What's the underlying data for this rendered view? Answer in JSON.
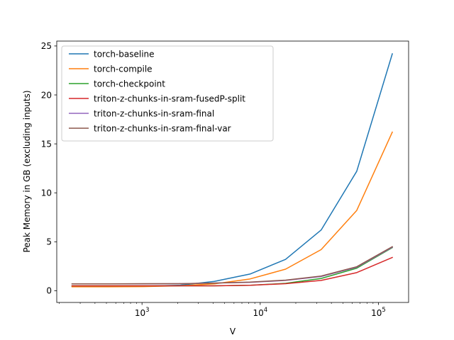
{
  "chart_data": {
    "type": "line",
    "xlabel": "V",
    "ylabel": "Peak Memory in GB (excluding inputs)",
    "xscale": "log",
    "xlim": [
      190,
      180000
    ],
    "ylim": [
      -1.2,
      25.5
    ],
    "x": [
      256,
      512,
      1024,
      2048,
      4096,
      8192,
      16384,
      32768,
      65536,
      131072
    ],
    "x_major_ticks": [
      {
        "value": 1000,
        "base": "10",
        "exp": "3"
      },
      {
        "value": 10000,
        "base": "10",
        "exp": "4"
      },
      {
        "value": 100000,
        "base": "10",
        "exp": "5"
      }
    ],
    "y_ticks": [
      0,
      5,
      10,
      15,
      20,
      25
    ],
    "legend_position": "upper-left",
    "grid": false,
    "series": [
      {
        "name": "torch-baseline",
        "color": "#1f77b4",
        "values": [
          0.45,
          0.45,
          0.46,
          0.55,
          0.95,
          1.7,
          3.2,
          6.2,
          12.2,
          24.2
        ]
      },
      {
        "name": "torch-compile",
        "color": "#ff7f0e",
        "values": [
          0.4,
          0.4,
          0.42,
          0.5,
          0.7,
          1.2,
          2.2,
          4.2,
          8.2,
          16.2
        ]
      },
      {
        "name": "torch-checkpoint",
        "color": "#2ca02c",
        "values": [
          0.5,
          0.5,
          0.5,
          0.5,
          0.5,
          0.55,
          0.75,
          1.25,
          2.3,
          4.4
        ]
      },
      {
        "name": "triton-z-chunks-in-sram-fusedP-split",
        "color": "#d62728",
        "values": [
          0.5,
          0.5,
          0.5,
          0.5,
          0.5,
          0.55,
          0.72,
          1.05,
          1.85,
          3.4
        ]
      },
      {
        "name": "triton-z-chunks-in-sram-final",
        "color": "#9467bd",
        "values": [
          0.7,
          0.7,
          0.7,
          0.72,
          0.78,
          0.85,
          1.05,
          1.45,
          2.4,
          4.45
        ]
      },
      {
        "name": "triton-z-chunks-in-sram-final-var",
        "color": "#8c564b",
        "values": [
          0.7,
          0.7,
          0.72,
          0.72,
          0.78,
          0.88,
          1.08,
          1.5,
          2.45,
          4.5
        ]
      }
    ]
  }
}
